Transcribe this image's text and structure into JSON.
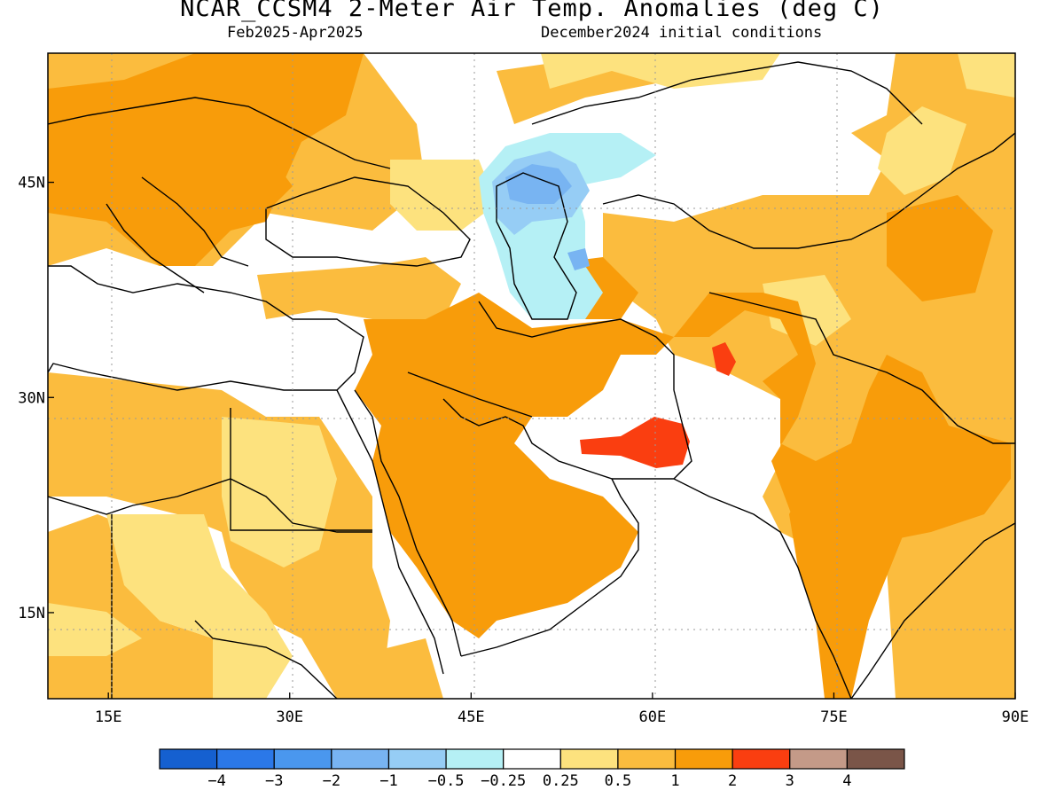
{
  "title": "NCAR_CCSM4 2-Meter Air Temp. Anomalies (deg C)",
  "subtitle_left": "Feb2025-Apr2025",
  "subtitle_right": "December2024 initial conditions",
  "map_extent": {
    "lon": [
      10,
      90
    ],
    "lat": [
      9,
      54
    ]
  },
  "lat_ticks": [
    {
      "value": 45,
      "label": "45N"
    },
    {
      "value": 30,
      "label": "30N"
    },
    {
      "value": 15,
      "label": "15N"
    }
  ],
  "lon_ticks": [
    {
      "value": 15,
      "label": "15E"
    },
    {
      "value": 30,
      "label": "30E"
    },
    {
      "value": 45,
      "label": "45E"
    },
    {
      "value": 60,
      "label": "60E"
    },
    {
      "value": 75,
      "label": "75E"
    },
    {
      "value": 90,
      "label": "90E"
    }
  ],
  "colorbar": {
    "colors": [
      "#1560d0",
      "#2b78e8",
      "#4a97ee",
      "#78b4f2",
      "#96cdf5",
      "#b5f0f5",
      "#ffffff",
      "#fde27e",
      "#fbbc3e",
      "#f89c0a",
      "#fa3e10",
      "#c49a88",
      "#7a5548"
    ],
    "labels": [
      "−4",
      "−3",
      "−2",
      "−1",
      "−0.5",
      "−0.25",
      "0.25",
      "0.5",
      "1",
      "2",
      "3",
      "4"
    ]
  }
}
